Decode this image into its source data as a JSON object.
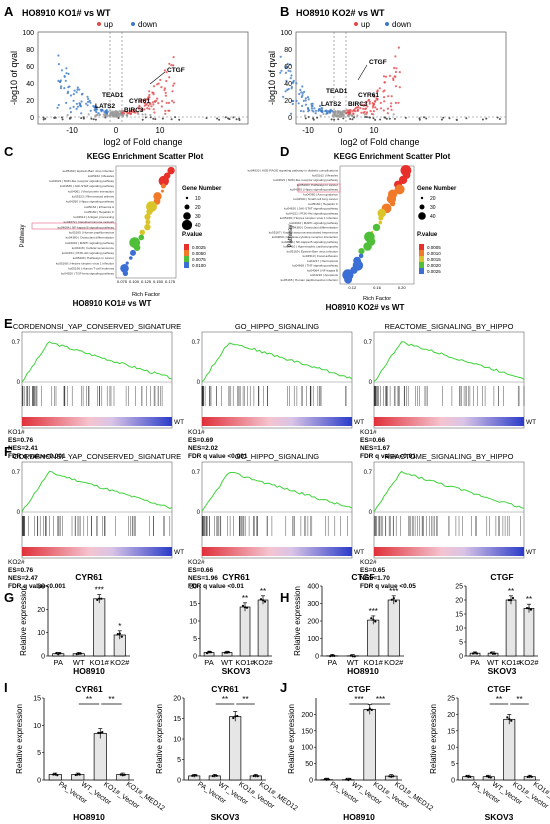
{
  "panels": {
    "A": {
      "letter": "A",
      "title": "HO8910  KO1# vs WT",
      "legend_up": "up",
      "legend_down": "down",
      "ylabel": "-log10 of qval",
      "xlabel": "log2 of Fold change",
      "yticks": [
        "0",
        "20",
        "40",
        "60",
        "80",
        "100"
      ],
      "xticks": [
        "-10",
        "0",
        "10"
      ],
      "genes": [
        "CTGF",
        "TEAD1",
        "CYR61",
        "LATS2",
        "BIRC3"
      ]
    },
    "B": {
      "letter": "B",
      "title": "HO8910  KO2# vs WT",
      "legend_up": "up",
      "legend_down": "down",
      "ylabel": "-log10 of qval",
      "xlabel": "log2 of Fold change",
      "yticks": [
        "0",
        "20",
        "40",
        "60",
        "80",
        "100"
      ],
      "xticks": [
        "-10",
        "0",
        "10"
      ],
      "genes": [
        "CTGF",
        "TEAD1",
        "CYR61",
        "LATS2",
        "BIRC3"
      ]
    },
    "C": {
      "letter": "C",
      "title": "KEGG Enrichment Scatter Plot",
      "ylabel": "Pathway",
      "xlabel": "Rich Factor",
      "caption": "HO8910  KO1# vs WT",
      "pathways": [
        "ko05169 | Epstein-Barr virus infection",
        "ko05162 | Measles",
        "ko04621 | NOD-like receptor signaling pathway",
        "ko04630 | JAK-STAT signaling pathway",
        "ko04061 | Viral protein interaction",
        "ko05323 | Rheumatoid arthritis",
        "ko04390 | Hippo signaling pathway",
        "ko05164 | Influenza A",
        "ko05160 | Hepatitis C",
        "ko04612 | Antigen processing",
        "ko04672 | Intestinal immune network",
        "ko04064 | NF-kappa B signaling pathway",
        "ko05165 | Human papillomavirus",
        "ko04380 | Osteoclast differentiation",
        "ko04010 | MAPK signaling pathway",
        "ko04218 | Cellular senescence",
        "ko04151 | PI3K-Akt signaling pathway",
        "ko05200 | Pathways in cancer",
        "ko05168 | Herpes simplex virus 1 infection",
        "ko05166 | Human T-cell leukemia",
        "ko04350 | TGF-beta signaling pathway"
      ],
      "xticks": [
        "0.075",
        "0.100",
        "0.125",
        "0.150",
        "0.175"
      ],
      "legend_size_title": "Gene Number",
      "size_ticks": [
        "10",
        "20",
        "30",
        "40"
      ],
      "legend_color_title": "P.value",
      "color_ticks": [
        "0.0025",
        "0.0050",
        "0.0075",
        "0.0100"
      ]
    },
    "D": {
      "letter": "D",
      "title": "KEGG Enrichment Scatter Plot",
      "ylabel": "Pathway",
      "xlabel": "Rich Factor",
      "caption": "HO8910  KO2# vs WT",
      "pathways": [
        "ko04933 | AGE-RAGE signaling pathway in diabetic complications",
        "ko05162 | Measles",
        "ko04621 | NOD-like receptor signaling pathway",
        "ko05200 | Pathways in cancer",
        "ko04390 | Hippo signaling pathway",
        "ko04360 | Axon guidance",
        "ko04540 | Small cell lung cancer",
        "ko05160 | Hepatitis C",
        "ko04630 | JAK-STAT signaling pathway",
        "ko04151 | PI3K-Akt signaling pathway",
        "ko05168 | Herpes simplex virus 1 infection",
        "ko04010 | MAPK signaling pathway",
        "ko04380 | Osteoclast differentiation",
        "ko05167 | Kaposi sarcoma-associated herpesvirus",
        "ko04060 | Cytokine-cytokine receptor interaction",
        "ko04064 | NF-kappa B signaling pathway",
        "ko05410 | Hypertrophic cardiomyopathy",
        "ko05169 | Epstein-Barr virus infection",
        "ko04510 | Focal adhesion",
        "ko04217 | Necroptosis",
        "ko04668 | TNF signaling pathway",
        "ko04064 | NF-kappa B",
        "ko04210 | Apoptosis",
        "ko05165 | Human papillomavirus infection"
      ],
      "xticks": [
        "0.12",
        "0.16",
        "0.20"
      ],
      "legend_size_title": "Gene Number",
      "size_ticks": [
        "20",
        "30",
        "40"
      ],
      "legend_color_title": "P.value",
      "color_ticks": [
        "0.0005",
        "0.0010",
        "0.0015",
        "0.0020",
        "0.0025"
      ]
    },
    "E": {
      "letter": "E",
      "gsea": [
        {
          "title": "CORDENONSI_YAP_CONSERVED_SIGNATURE",
          "ytop": "0.7",
          "ybot": "0",
          "left": "KO1#",
          "right": "WT",
          "stats": [
            "ES=0.76",
            "NES=2.41",
            "FDR q value<0.001"
          ]
        },
        {
          "title": "GO_HIPPO_SIGNALING",
          "ytop": "0.7",
          "ybot": "0",
          "left": "KO1#",
          "right": "WT",
          "stats": [
            "ES=0.69",
            "NES=2.02",
            "FDR q value <0.001"
          ]
        },
        {
          "title": "REACTOME_SIGNALING_BY_HIPPO",
          "ytop": "0.7",
          "ybot": "0",
          "left": "KO1#",
          "right": "WT",
          "stats": [
            "ES=0.66",
            "NES=1.67",
            "FDR q value <0.01"
          ]
        }
      ]
    },
    "F": {
      "letter": "F",
      "gsea": [
        {
          "title": "CORDENONSI_YAP_CONSERVED_SIGNATURE",
          "ytop": "0.7",
          "ybot": "0",
          "left": "KO2#",
          "right": "WT",
          "stats": [
            "ES=0.76",
            "NES=2.47",
            "FDR q value<0.001"
          ]
        },
        {
          "title": "GO_HIPPO_SIGNALING",
          "ytop": "0.7",
          "ybot": "0",
          "left": "KO2#",
          "right": "WT",
          "stats": [
            "ES=0.66",
            "NES=1.96",
            "FDR q value <0.01"
          ]
        },
        {
          "title": "REACTOME_SIGNALING_BY_HIPPO",
          "ytop": "0.7",
          "ybot": "0",
          "left": "KO2#",
          "right": "WT",
          "stats": [
            "ES=0.65",
            "NES=1.70",
            "FDR q value <0.05"
          ]
        }
      ]
    },
    "G": {
      "letter": "G"
    },
    "H": {
      "letter": "H"
    },
    "I": {
      "letter": "I"
    },
    "J": {
      "letter": "J"
    }
  },
  "chart_data": [
    {
      "id": "G1",
      "type": "bar",
      "title": "CYR61",
      "xlabel": "HO8910",
      "ylabel": "Relative expression",
      "categories": [
        "PA",
        "WT",
        "KO1#",
        "KO2#"
      ],
      "values": [
        1,
        1,
        24.5,
        9
      ],
      "ylim": [
        0,
        30
      ],
      "yticks": [
        "0",
        "10",
        "20",
        "30"
      ],
      "sig": [
        "",
        "",
        "***",
        "*"
      ]
    },
    {
      "id": "G2",
      "type": "bar",
      "title": "CYR61",
      "xlabel": "SKOV3",
      "ylabel": "",
      "categories": [
        "PA",
        "WT",
        "KO1#",
        "KO2#"
      ],
      "values": [
        1,
        1,
        14,
        16
      ],
      "ylim": [
        0,
        20
      ],
      "yticks": [
        "0",
        "5",
        "10",
        "15",
        "20"
      ],
      "sig": [
        "",
        "",
        "**",
        "**"
      ]
    },
    {
      "id": "H1",
      "type": "bar",
      "title": "CTGF",
      "xlabel": "HO8910",
      "ylabel": "Relative expression",
      "categories": [
        "PA",
        "WT",
        "KO1#",
        "KO2#"
      ],
      "values": [
        1,
        1,
        205,
        320
      ],
      "ylim": [
        0,
        400
      ],
      "yticks": [
        "0",
        "100",
        "200",
        "300",
        "400"
      ],
      "sig": [
        "",
        "",
        "***",
        "***"
      ]
    },
    {
      "id": "H2",
      "type": "bar",
      "title": "CTGF",
      "xlabel": "SKOV3",
      "ylabel": "",
      "categories": [
        "PA",
        "WT",
        "KO1#",
        "KO2#"
      ],
      "values": [
        1,
        1,
        20,
        17
      ],
      "ylim": [
        0,
        25
      ],
      "yticks": [
        "0",
        "5",
        "10",
        "15",
        "20",
        "25"
      ],
      "sig": [
        "",
        "",
        "**",
        "**"
      ]
    },
    {
      "id": "I1",
      "type": "bar",
      "title": "CYR61",
      "xlabel": "HO8910",
      "ylabel": "Relative expression",
      "categories": [
        "PA_Vector",
        "WT_Vector",
        "KO1#_Vector",
        "KO1#_MED12"
      ],
      "values": [
        1,
        1,
        8.5,
        1
      ],
      "ylim": [
        0,
        15
      ],
      "yticks": [
        "0",
        "5",
        "10",
        "15"
      ],
      "brackets": [
        {
          "from": 1,
          "to": 2,
          "label": "**"
        },
        {
          "from": 2,
          "to": 3,
          "label": "**"
        }
      ]
    },
    {
      "id": "I2",
      "type": "bar",
      "title": "CYR61",
      "xlabel": "SKOV3",
      "ylabel": "Relative expression",
      "categories": [
        "PA_Vector",
        "WT_Vector",
        "KO1#_Vector",
        "KO1#_MED12"
      ],
      "values": [
        1,
        1,
        15.5,
        1
      ],
      "ylim": [
        0,
        20
      ],
      "yticks": [
        "0",
        "5",
        "10",
        "15",
        "20"
      ],
      "brackets": [
        {
          "from": 1,
          "to": 2,
          "label": "**"
        },
        {
          "from": 2,
          "to": 3,
          "label": "**"
        }
      ]
    },
    {
      "id": "J1",
      "type": "bar",
      "title": "CTGF",
      "xlabel": "HO8910",
      "ylabel": "Relative expression",
      "categories": [
        "PA_Vector",
        "WT_Vector",
        "KO1#_Vector",
        "KO1#_MED12"
      ],
      "values": [
        1,
        1,
        215,
        12
      ],
      "ylim": [
        0,
        250
      ],
      "yticks": [
        "0",
        "50",
        "100",
        "150",
        "200"
      ],
      "brackets": [
        {
          "from": 1,
          "to": 2,
          "label": "***"
        },
        {
          "from": 2,
          "to": 3,
          "label": "***"
        }
      ]
    },
    {
      "id": "J2",
      "type": "bar",
      "title": "CTGF",
      "xlabel": "SKOV3",
      "ylabel": "Relative expression",
      "categories": [
        "PA_Vector",
        "WT_Vector",
        "KO1#_Vector",
        "KO1#_MED12"
      ],
      "values": [
        1,
        1,
        18.5,
        1
      ],
      "ylim": [
        0,
        25
      ],
      "yticks": [
        "0",
        "5",
        "10",
        "15",
        "20",
        "25"
      ],
      "brackets": [
        {
          "from": 1,
          "to": 2,
          "label": "**"
        },
        {
          "from": 2,
          "to": 3,
          "label": "**"
        }
      ]
    }
  ]
}
